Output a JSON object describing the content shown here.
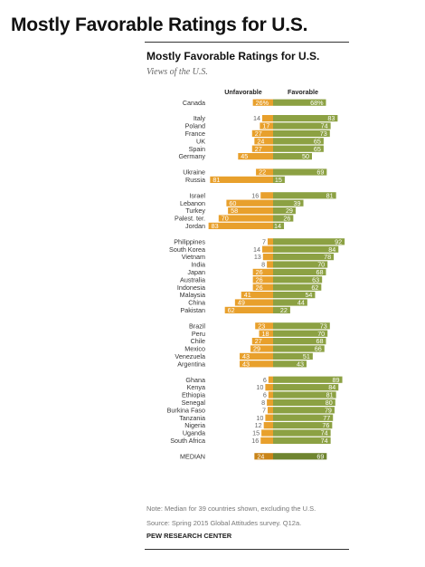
{
  "page": {
    "title": "Mostly Favorable Ratings for U.S.",
    "note": "Note: Median for 39 countries shown, excluding the U.S.",
    "source": "Source: Spring 2015 Global Attitudes survey. Q12a.",
    "org": "PEW RESEARCH CENTER"
  },
  "chart_data": {
    "type": "bar",
    "orientation": "horizontal-diverging",
    "title": "Mostly Favorable Ratings for U.S.",
    "subtitle": "Views of the U.S.",
    "unit": "%",
    "series": [
      {
        "name": "Unfavorable",
        "color": "#e8a02c"
      },
      {
        "name": "Favorable",
        "color": "#8ca143"
      }
    ],
    "median_colors": {
      "unfavorable": "#c98418",
      "favorable": "#6f8530"
    },
    "groups": [
      [
        {
          "country": "Canada",
          "unfav": "26%",
          "fav": "68%"
        }
      ],
      [
        {
          "country": "Italy",
          "unfav": "14",
          "fav": "83"
        },
        {
          "country": "Poland",
          "unfav": "17",
          "fav": "74"
        },
        {
          "country": "France",
          "unfav": "27",
          "fav": "73"
        },
        {
          "country": "UK",
          "unfav": "24",
          "fav": "65"
        },
        {
          "country": "Spain",
          "unfav": "27",
          "fav": "65"
        },
        {
          "country": "Germany",
          "unfav": "45",
          "fav": "50"
        }
      ],
      [
        {
          "country": "Ukraine",
          "unfav": "22",
          "fav": "69"
        },
        {
          "country": "Russia",
          "unfav": "81",
          "fav": "15"
        }
      ],
      [
        {
          "country": "Israel",
          "unfav": "16",
          "fav": "81"
        },
        {
          "country": "Lebanon",
          "unfav": "60",
          "fav": "39"
        },
        {
          "country": "Turkey",
          "unfav": "58",
          "fav": "29"
        },
        {
          "country": "Palest. ter.",
          "unfav": "70",
          "fav": "26"
        },
        {
          "country": "Jordan",
          "unfav": "83",
          "fav": "14"
        }
      ],
      [
        {
          "country": "Philippines",
          "unfav": "7",
          "fav": "92"
        },
        {
          "country": "South Korea",
          "unfav": "14",
          "fav": "84"
        },
        {
          "country": "Vietnam",
          "unfav": "13",
          "fav": "78"
        },
        {
          "country": "India",
          "unfav": "8",
          "fav": "70"
        },
        {
          "country": "Japan",
          "unfav": "26",
          "fav": "68"
        },
        {
          "country": "Australia",
          "unfav": "26",
          "fav": "63"
        },
        {
          "country": "Indonesia",
          "unfav": "26",
          "fav": "62"
        },
        {
          "country": "Malaysia",
          "unfav": "41",
          "fav": "54"
        },
        {
          "country": "China",
          "unfav": "49",
          "fav": "44"
        },
        {
          "country": "Pakistan",
          "unfav": "62",
          "fav": "22"
        }
      ],
      [
        {
          "country": "Brazil",
          "unfav": "23",
          "fav": "73"
        },
        {
          "country": "Peru",
          "unfav": "18",
          "fav": "70"
        },
        {
          "country": "Chile",
          "unfav": "27",
          "fav": "68"
        },
        {
          "country": "Mexico",
          "unfav": "29",
          "fav": "66"
        },
        {
          "country": "Venezuela",
          "unfav": "43",
          "fav": "51"
        },
        {
          "country": "Argentina",
          "unfav": "43",
          "fav": "43"
        }
      ],
      [
        {
          "country": "Ghana",
          "unfav": "6",
          "fav": "89"
        },
        {
          "country": "Kenya",
          "unfav": "10",
          "fav": "84"
        },
        {
          "country": "Ethiopia",
          "unfav": "6",
          "fav": "81"
        },
        {
          "country": "Senegal",
          "unfav": "8",
          "fav": "80"
        },
        {
          "country": "Burkina Faso",
          "unfav": "7",
          "fav": "79"
        },
        {
          "country": "Tanzania",
          "unfav": "10",
          "fav": "77"
        },
        {
          "country": "Nigeria",
          "unfav": "12",
          "fav": "76"
        },
        {
          "country": "Uganda",
          "unfav": "15",
          "fav": "74"
        },
        {
          "country": "South Africa",
          "unfav": "16",
          "fav": "74"
        }
      ],
      [
        {
          "country": "MEDIAN",
          "unfav": "24",
          "fav": "69",
          "median": true
        }
      ]
    ]
  }
}
